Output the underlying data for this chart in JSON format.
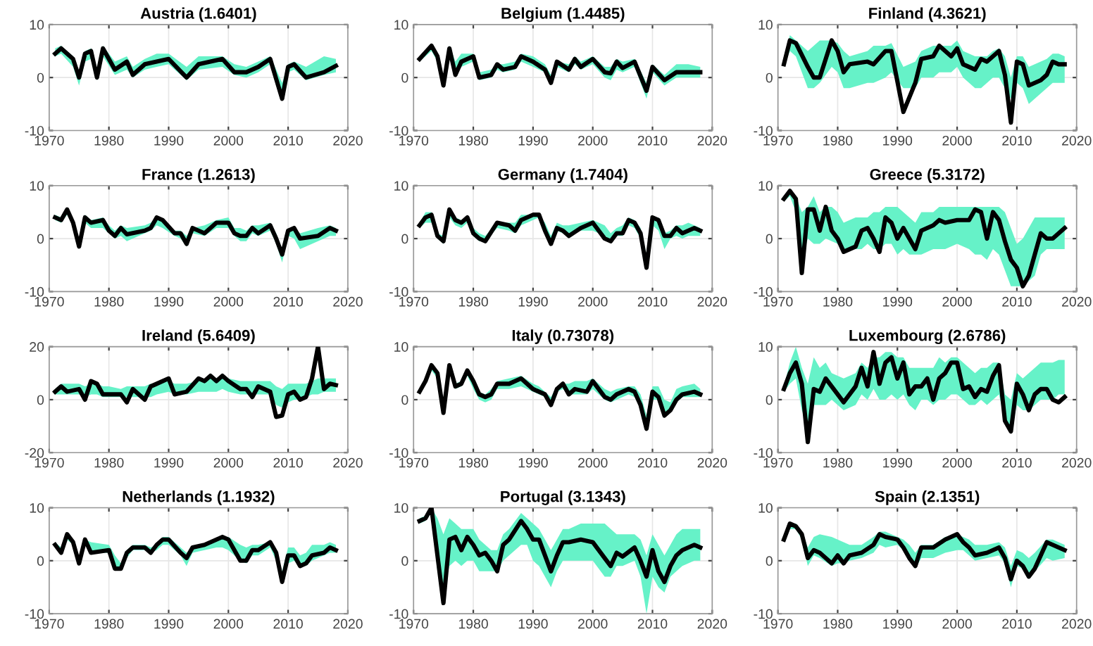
{
  "chart_data": [
    {
      "type": "line",
      "title": "Austria (1.6401)",
      "xlim": [
        1970,
        2020
      ],
      "xticks": [
        1970,
        1980,
        1990,
        2000,
        2010,
        2020
      ],
      "ylim": [
        -10,
        10
      ],
      "yticks": [
        -10,
        0,
        10
      ],
      "grid": true,
      "series": [
        {
          "color": "#000000",
          "x": [
            1971,
            1972,
            1974,
            1975,
            1976,
            1977,
            1978,
            1979,
            1981,
            1983,
            1984,
            1986,
            1988,
            1990,
            1993,
            1995,
            1999,
            2001,
            2003,
            2005,
            2007,
            2009,
            2010,
            2011,
            2013,
            2016,
            2018
          ],
          "values": [
            4.5,
            5.5,
            3.5,
            0,
            4.5,
            5,
            0,
            5.5,
            1.5,
            3,
            0.5,
            2.5,
            3,
            3.5,
            0,
            2.5,
            3.5,
            1,
            1,
            2,
            3.5,
            -4,
            2,
            2.5,
            0,
            1,
            2.2
          ],
          "lower": [
            4,
            4.5,
            2,
            -1.5,
            3,
            3.5,
            -0.5,
            4,
            0.5,
            1.5,
            0,
            1.5,
            2,
            2.5,
            -0.5,
            1.5,
            2,
            0.5,
            0,
            1,
            2.5,
            -3,
            1,
            1.5,
            -0.5,
            0.5,
            1
          ],
          "upper": [
            5.5,
            6,
            4,
            1,
            5,
            5.5,
            1.5,
            6,
            3,
            4,
            2,
            3.5,
            4.5,
            4.5,
            2,
            4,
            4,
            2.5,
            2,
            3,
            4,
            -1,
            2.5,
            3,
            2,
            4,
            3.5
          ]
        }
      ]
    },
    {
      "type": "line",
      "title": "Belgium (1.4485)",
      "xlim": [
        1970,
        2020
      ],
      "xticks": [
        1970,
        1980,
        1990,
        2000,
        2010,
        2020
      ],
      "ylim": [
        -10,
        10
      ],
      "yticks": [
        -10,
        0,
        10
      ],
      "grid": true,
      "series": [
        {
          "color": "#000000",
          "x": [
            1971,
            1973,
            1974,
            1975,
            1976,
            1977,
            1978,
            1980,
            1981,
            1983,
            1984,
            1985,
            1987,
            1988,
            1990,
            1992,
            1993,
            1994,
            1996,
            1997,
            1998,
            2000,
            2002,
            2003,
            2004,
            2005,
            2007,
            2009,
            2010,
            2012,
            2014,
            2016,
            2018
          ],
          "values": [
            3.5,
            6,
            4,
            -1.5,
            5.5,
            0.5,
            3,
            4,
            0,
            0.5,
            2.5,
            1.5,
            2,
            4,
            3,
            1.5,
            -1,
            3,
            1.5,
            3.5,
            2,
            3.5,
            1,
            0.8,
            3,
            1.8,
            3,
            -2.5,
            2,
            -0.5,
            1,
            1,
            1
          ],
          "lower": [
            3,
            5,
            3,
            -1,
            4,
            1.5,
            2,
            3,
            -0.5,
            0,
            1.5,
            1,
            1.5,
            3,
            2,
            1,
            -1,
            2,
            1,
            2.5,
            1.5,
            2.5,
            0,
            -0.5,
            1.5,
            1,
            2,
            -4,
            1,
            -1.5,
            0,
            0,
            0
          ],
          "upper": [
            4,
            6,
            4.5,
            0,
            6,
            3,
            4.5,
            4.5,
            1,
            1.5,
            2.5,
            2.5,
            3,
            4.5,
            4,
            2.5,
            0.5,
            3,
            2.5,
            4,
            3,
            4,
            2,
            2,
            3.5,
            3,
            3.5,
            -1,
            2.5,
            0.5,
            2.5,
            2.5,
            2
          ]
        }
      ]
    },
    {
      "type": "line",
      "title": "Finland (4.3621)",
      "xlim": [
        1970,
        2020
      ],
      "xticks": [
        1970,
        1980,
        1990,
        2000,
        2010,
        2020
      ],
      "ylim": [
        -10,
        10
      ],
      "yticks": [
        -10,
        0,
        10
      ],
      "grid": true,
      "series": [
        {
          "color": "#000000",
          "x": [
            1971,
            1972,
            1973,
            1975,
            1976,
            1977,
            1979,
            1980,
            1981,
            1982,
            1985,
            1986,
            1988,
            1989,
            1991,
            1993,
            1994,
            1996,
            1997,
            1999,
            2000,
            2001,
            2003,
            2004,
            2005,
            2006,
            2007,
            2008,
            2009,
            2010,
            2011,
            2012,
            2014,
            2015,
            2016,
            2017,
            2018
          ],
          "values": [
            2.5,
            7,
            6.5,
            2,
            0,
            0,
            7,
            5,
            1,
            2.5,
            3,
            2.5,
            5,
            5,
            -6.5,
            -1,
            3.5,
            4,
            6,
            4,
            5.5,
            2.5,
            1.5,
            3.5,
            3,
            4,
            5,
            0.5,
            -8.5,
            3,
            2.5,
            -1.5,
            -0.5,
            0.5,
            3,
            2.5,
            2.5
          ],
          "lower": [
            2,
            5,
            4,
            -2,
            -2,
            -1,
            2,
            1,
            -2,
            -2,
            -1,
            -1,
            0,
            1,
            -2,
            -2,
            0,
            0,
            1,
            1,
            2,
            0,
            -2,
            -2,
            -1,
            0,
            0,
            -2,
            -4,
            -1,
            -2,
            -5,
            -3,
            -2,
            -1,
            -1,
            -1
          ],
          "upper": [
            3,
            8,
            7,
            5,
            6,
            7,
            7,
            6.5,
            5,
            4,
            5,
            6,
            6,
            6.5,
            2,
            3,
            5,
            6,
            6,
            6,
            7,
            5,
            4,
            4,
            4,
            5,
            5.5,
            4,
            0,
            4,
            4,
            2,
            3,
            3.5,
            4.5,
            4.5,
            4
          ]
        }
      ]
    },
    {
      "type": "line",
      "title": "France (1.2613)",
      "xlim": [
        1970,
        2020
      ],
      "xticks": [
        1970,
        1980,
        1990,
        2000,
        2010,
        2020
      ],
      "ylim": [
        -10,
        10
      ],
      "yticks": [
        -10,
        0,
        10
      ],
      "grid": true,
      "series": [
        {
          "color": "#000000",
          "x": [
            1971,
            1972,
            1973,
            1974,
            1975,
            1976,
            1977,
            1979,
            1980,
            1981,
            1982,
            1983,
            1986,
            1987,
            1988,
            1989,
            1991,
            1992,
            1993,
            1994,
            1996,
            1998,
            2000,
            2001,
            2002,
            2003,
            2004,
            2005,
            2007,
            2008,
            2009,
            2010,
            2011,
            2012,
            2015,
            2017,
            2018
          ],
          "values": [
            4,
            3.5,
            5.5,
            3,
            -1.5,
            4,
            3,
            3.5,
            1.5,
            0.5,
            2,
            0.8,
            1.5,
            2,
            4,
            3.5,
            1,
            1,
            -1,
            2,
            1,
            3,
            3,
            1,
            0.5,
            0.5,
            2,
            1,
            2.5,
            0,
            -3,
            1.5,
            2,
            0,
            0.5,
            2,
            1.5
          ],
          "lower": [
            3.5,
            3,
            4.5,
            2.5,
            -1,
            3,
            2,
            2,
            1,
            0,
            0.5,
            -0.5,
            1,
            1.5,
            2.5,
            2,
            0.5,
            0,
            -1.5,
            1,
            0.5,
            2,
            2,
            0.5,
            -0.5,
            -0.5,
            1,
            0.5,
            1.5,
            -1,
            -4.5,
            0.5,
            0,
            -2,
            -0.5,
            0.5,
            0.5
          ],
          "upper": [
            4.5,
            4,
            5.5,
            3.5,
            0,
            4.5,
            3.5,
            4,
            2.5,
            1.5,
            2.5,
            2,
            2.5,
            3,
            4,
            3.5,
            1.5,
            1.5,
            0.5,
            2,
            2.5,
            3.5,
            4,
            2,
            2,
            1.5,
            2.5,
            2.5,
            3,
            1,
            -2,
            1.5,
            2,
            1,
            2,
            2.5,
            2
          ]
        }
      ]
    },
    {
      "type": "line",
      "title": "Germany (1.7404)",
      "xlim": [
        1970,
        2020
      ],
      "xticks": [
        1970,
        1980,
        1990,
        2000,
        2010,
        2020
      ],
      "ylim": [
        -10,
        10
      ],
      "yticks": [
        -10,
        0,
        10
      ],
      "grid": true,
      "series": [
        {
          "color": "#000000",
          "x": [
            1971,
            1972,
            1973,
            1974,
            1975,
            1976,
            1977,
            1978,
            1979,
            1980,
            1981,
            1982,
            1984,
            1986,
            1987,
            1988,
            1990,
            1991,
            1992,
            1993,
            1994,
            1995,
            1996,
            1998,
            2000,
            2001,
            2002,
            2003,
            2004,
            2005,
            2006,
            2007,
            2008,
            2009,
            2010,
            2011,
            2012,
            2013,
            2014,
            2015,
            2016,
            2017,
            2018
          ],
          "values": [
            2.5,
            4,
            4.5,
            0.5,
            -0.5,
            5.5,
            3.5,
            3,
            4,
            1,
            0,
            -0.5,
            3,
            2.5,
            1.5,
            3.5,
            4.5,
            4.5,
            1.5,
            -1,
            2,
            1.5,
            0.5,
            2,
            3,
            1.5,
            0,
            -0.5,
            1,
            1,
            3.5,
            3,
            1,
            -5.5,
            4,
            3.5,
            0.5,
            0.5,
            2,
            1,
            1.5,
            2,
            1.5
          ],
          "lower": [
            2,
            3,
            3,
            0,
            -1,
            4,
            2.5,
            2,
            3,
            0.5,
            -0.5,
            -0.5,
            2,
            1.5,
            1,
            2.5,
            3.5,
            4,
            1,
            -1,
            1.5,
            1,
            1,
            1.5,
            1.5,
            1,
            0,
            -0.5,
            0.5,
            0.5,
            2.5,
            2,
            0,
            -4,
            2.5,
            1.5,
            -2,
            0,
            0.5,
            0,
            0.5,
            0.5,
            0.5
          ],
          "upper": [
            3,
            5,
            5,
            1,
            0.5,
            5.5,
            4,
            3.5,
            4,
            2,
            1,
            0.5,
            3,
            3,
            3,
            4.5,
            4.5,
            4.5,
            3,
            0.5,
            3,
            2.5,
            2.5,
            3,
            3.5,
            3,
            2.5,
            1,
            2,
            2.5,
            4,
            3.5,
            2,
            -3,
            4,
            4,
            1,
            1.5,
            2.5,
            2.5,
            3,
            2.5,
            2
          ]
        }
      ]
    },
    {
      "type": "line",
      "title": "Greece (5.3172)",
      "xlim": [
        1970,
        2020
      ],
      "xticks": [
        1970,
        1980,
        1990,
        2000,
        2010,
        2020
      ],
      "ylim": [
        -10,
        10
      ],
      "yticks": [
        -10,
        0,
        10
      ],
      "grid": true,
      "series": [
        {
          "color": "#000000",
          "x": [
            1971,
            1972,
            1973,
            1974,
            1975,
            1976,
            1977,
            1978,
            1979,
            1980,
            1981,
            1983,
            1984,
            1985,
            1986,
            1987,
            1988,
            1989,
            1990,
            1991,
            1992,
            1993,
            1994,
            1996,
            1997,
            1998,
            2000,
            2002,
            2003,
            2004,
            2005,
            2006,
            2007,
            2008,
            2009,
            2010,
            2011,
            2012,
            2013,
            2014,
            2015,
            2016,
            2018
          ],
          "values": [
            7.5,
            9,
            7.5,
            -6.5,
            5.5,
            5.5,
            1.5,
            6,
            1.5,
            0,
            -2.5,
            -1.5,
            1.5,
            2,
            0,
            -2.5,
            4,
            3,
            0,
            2,
            0,
            -2,
            1.5,
            2.5,
            3.5,
            3,
            3.5,
            3.5,
            5.5,
            5,
            0,
            5,
            3.5,
            -0.5,
            -4,
            -5.5,
            -9,
            -7,
            -3,
            1,
            0,
            0,
            2
          ],
          "lower": [
            7,
            8,
            5,
            -4,
            0,
            -1,
            -1,
            0,
            -0.5,
            -1,
            -2,
            -2,
            -2,
            -1,
            -2,
            -2,
            -1,
            -1,
            -3,
            -2,
            -3,
            -3,
            -3,
            -2,
            -2,
            -2,
            -1,
            -2,
            -3,
            -3,
            -4,
            -2,
            -3,
            -6,
            -9,
            -9,
            -9,
            -8,
            -7,
            -3,
            -2,
            -2,
            -2
          ],
          "upper": [
            8,
            9,
            8,
            5,
            6,
            8,
            5,
            6,
            6,
            5,
            3,
            4,
            4,
            4,
            5,
            5,
            6,
            6,
            6,
            5,
            4,
            3,
            5,
            5,
            6,
            6,
            6,
            6,
            6,
            6,
            6,
            6,
            6,
            5,
            2,
            -1,
            0,
            2,
            4,
            4,
            4,
            4,
            4
          ]
        }
      ]
    },
    {
      "type": "line",
      "title": "Ireland (5.6409)",
      "xlim": [
        1970,
        2020
      ],
      "xticks": [
        1970,
        1980,
        1990,
        2000,
        2010,
        2020
      ],
      "ylim": [
        -20,
        20
      ],
      "yticks": [
        -20,
        0,
        20
      ],
      "grid": true,
      "series": [
        {
          "color": "#000000",
          "x": [
            1971,
            1972,
            1973,
            1975,
            1976,
            1977,
            1978,
            1979,
            1980,
            1982,
            1983,
            1984,
            1986,
            1987,
            1988,
            1990,
            1991,
            1993,
            1995,
            1996,
            1997,
            1998,
            1999,
            2000,
            2002,
            2003,
            2004,
            2005,
            2007,
            2008,
            2009,
            2010,
            2011,
            2012,
            2013,
            2014,
            2015,
            2016,
            2017,
            2018
          ],
          "values": [
            3,
            5,
            3,
            4,
            0,
            7,
            6,
            2,
            2,
            2,
            -1,
            4,
            0,
            5,
            6,
            8,
            2,
            3,
            8,
            7,
            9,
            7,
            9,
            7,
            4,
            4,
            1,
            5,
            3,
            -6.5,
            -6,
            2,
            3,
            0,
            1,
            8,
            20,
            4,
            6,
            5.5
          ],
          "lower": [
            2,
            2,
            2,
            2,
            1,
            2,
            2,
            1,
            1,
            1,
            1,
            1,
            1,
            1,
            2,
            3,
            2,
            2,
            3,
            3,
            3,
            3,
            4,
            3,
            2,
            2,
            2,
            2,
            2,
            -2,
            -3,
            -1,
            0,
            0,
            1,
            2,
            2,
            3,
            3,
            3
          ],
          "upper": [
            4,
            6,
            6,
            6,
            5,
            6,
            6,
            5,
            5,
            4,
            5,
            5,
            5,
            6,
            6,
            7,
            6,
            6,
            7,
            8,
            8,
            8,
            8,
            8,
            7,
            7,
            7,
            7,
            7,
            5,
            4,
            6,
            6,
            6,
            6,
            7,
            8,
            8,
            8,
            8
          ]
        }
      ]
    },
    {
      "type": "line",
      "title": "Italy (0.73078)",
      "xlim": [
        1970,
        2020
      ],
      "xticks": [
        1970,
        1980,
        1990,
        2000,
        2010,
        2020
      ],
      "ylim": [
        -10,
        10
      ],
      "yticks": [
        -10,
        0,
        10
      ],
      "grid": true,
      "series": [
        {
          "color": "#000000",
          "x": [
            1971,
            1972,
            1973,
            1974,
            1975,
            1976,
            1977,
            1978,
            1979,
            1980,
            1981,
            1982,
            1983,
            1984,
            1986,
            1988,
            1990,
            1991,
            1992,
            1993,
            1994,
            1995,
            1996,
            1997,
            1999,
            2000,
            2001,
            2002,
            2003,
            2004,
            2006,
            2007,
            2008,
            2009,
            2010,
            2011,
            2012,
            2013,
            2014,
            2015,
            2017,
            2018
          ],
          "values": [
            1.5,
            3.5,
            6.5,
            5,
            -2.5,
            6.5,
            2.5,
            3,
            5.5,
            3.5,
            1,
            0.5,
            1,
            3,
            3,
            4,
            2,
            1.5,
            1,
            -1,
            2,
            3,
            1,
            2,
            1.5,
            3.5,
            2,
            0.5,
            0,
            1,
            2,
            1.5,
            -1,
            -5.5,
            1.5,
            0.5,
            -3,
            -2,
            0,
            1,
            1.5,
            1
          ],
          "lower": [
            1,
            3,
            5.5,
            4,
            -2,
            5,
            2,
            2.5,
            4.5,
            2,
            0,
            -0.5,
            0,
            2,
            2,
            2.5,
            1.5,
            1,
            0.5,
            -1,
            1.5,
            2,
            1,
            1,
            1,
            2,
            1,
            0,
            -0.5,
            0,
            1,
            0.5,
            -1.5,
            -5,
            0,
            0,
            -3,
            -2,
            -0.5,
            0.5,
            0.5,
            0.5
          ],
          "upper": [
            2,
            4,
            6.5,
            5,
            -1,
            6.5,
            3,
            3.5,
            5.5,
            3.5,
            1.5,
            1,
            2,
            3.5,
            4,
            4.5,
            3,
            2.5,
            1.5,
            0.5,
            2.5,
            3,
            3,
            3.5,
            3.5,
            4,
            3,
            2,
            1.5,
            2,
            2.5,
            2.5,
            1,
            -3,
            2.5,
            2.5,
            0,
            -0.5,
            2,
            2.5,
            3,
            2
          ]
        }
      ]
    },
    {
      "type": "line",
      "title": "Luxembourg (2.6786)",
      "xlim": [
        1970,
        2020
      ],
      "xticks": [
        1970,
        1980,
        1990,
        2000,
        2010,
        2020
      ],
      "ylim": [
        -10,
        10
      ],
      "yticks": [
        -10,
        0,
        10
      ],
      "grid": true,
      "series": [
        {
          "color": "#000000",
          "x": [
            1971,
            1972,
            1973,
            1974,
            1975,
            1976,
            1977,
            1978,
            1979,
            1981,
            1983,
            1984,
            1985,
            1986,
            1987,
            1988,
            1989,
            1990,
            1991,
            1992,
            1993,
            1994,
            1995,
            1996,
            1997,
            1998,
            1999,
            2000,
            2001,
            2002,
            2003,
            2004,
            2005,
            2006,
            2007,
            2008,
            2009,
            2010,
            2011,
            2012,
            2013,
            2014,
            2015,
            2016,
            2017,
            2018
          ],
          "values": [
            2,
            5,
            7,
            3,
            -8,
            2,
            1.5,
            4,
            2.5,
            -0.5,
            2.5,
            6,
            2.5,
            9,
            3,
            7,
            8,
            4,
            7,
            1,
            2.5,
            2.5,
            4,
            0,
            4,
            5,
            7,
            7,
            2,
            2.5,
            0.5,
            2,
            1.5,
            4.5,
            6.5,
            -4,
            -6,
            3,
            1,
            -2,
            1,
            2,
            2,
            0,
            -0.5,
            0.5
          ],
          "lower": [
            1.5,
            3,
            4,
            -2,
            -5,
            -1,
            -1,
            -1,
            0,
            -2,
            -1,
            1,
            0,
            2,
            0,
            0,
            1,
            0,
            1,
            -1,
            -2,
            0,
            0,
            -1,
            0,
            0,
            1,
            1,
            0,
            -1,
            -1,
            0,
            -1,
            0,
            1,
            -4,
            -6,
            -1,
            -2,
            -2,
            -1,
            0,
            0,
            0,
            1,
            1
          ],
          "upper": [
            2.5,
            7,
            10,
            6,
            3,
            8,
            6,
            7,
            5,
            4,
            5,
            7,
            6,
            8,
            8,
            9,
            9,
            8,
            8,
            6,
            6,
            6,
            6,
            6,
            8,
            7,
            8,
            8,
            7,
            6,
            5,
            6,
            6,
            7,
            7,
            1,
            0,
            5,
            4,
            5,
            6,
            7,
            7,
            7,
            7.5,
            7.5
          ]
        }
      ]
    },
    {
      "type": "line",
      "title": "Netherlands (1.1932)",
      "xlim": [
        1970,
        2020
      ],
      "xticks": [
        1970,
        1980,
        1990,
        2000,
        2010,
        2020
      ],
      "ylim": [
        -10,
        10
      ],
      "yticks": [
        -10,
        0,
        10
      ],
      "grid": true,
      "series": [
        {
          "color": "#000000",
          "x": [
            1971,
            1972,
            1973,
            1974,
            1975,
            1976,
            1977,
            1980,
            1981,
            1982,
            1983,
            1984,
            1986,
            1987,
            1988,
            1989,
            1990,
            1992,
            1993,
            1994,
            1996,
            1998,
            1999,
            2000,
            2002,
            2003,
            2004,
            2005,
            2007,
            2008,
            2009,
            2010,
            2011,
            2012,
            2013,
            2014,
            2016,
            2017,
            2018
          ],
          "values": [
            3,
            1.5,
            5,
            3.5,
            -0.5,
            4,
            1.5,
            2,
            -1.5,
            -1.5,
            1.5,
            2.5,
            2.5,
            1.5,
            3,
            4,
            4,
            1.5,
            0.5,
            2.5,
            3,
            4,
            4.5,
            4,
            0,
            0,
            2,
            2,
            3.5,
            1.5,
            -4,
            1,
            1,
            -1,
            -0.5,
            1,
            1.5,
            2.5,
            2
          ],
          "lower": [
            2.5,
            1.5,
            4,
            3,
            -0.5,
            3,
            1.5,
            1.5,
            -1,
            -1.5,
            0.5,
            2,
            2,
            1.5,
            2,
            3,
            3,
            1,
            -1,
            1.5,
            2,
            2.5,
            2.5,
            2,
            0,
            -0.5,
            1,
            1,
            2.5,
            0,
            -3.5,
            -0.5,
            0,
            -1,
            -1,
            0,
            1,
            1.5,
            1.5
          ],
          "upper": [
            3.5,
            2.5,
            5,
            4,
            0.5,
            4,
            3.5,
            3,
            1,
            -0.5,
            2,
            3,
            3,
            2.5,
            3,
            4.5,
            4.5,
            2.5,
            1.5,
            2.5,
            3,
            4,
            4.5,
            4.5,
            3,
            2.5,
            3,
            3,
            3.5,
            2,
            -2,
            2.5,
            2.5,
            1,
            1.5,
            3,
            3,
            3.5,
            3
          ]
        }
      ]
    },
    {
      "type": "line",
      "title": "Portugal (3.1343)",
      "xlim": [
        1970,
        2020
      ],
      "xticks": [
        1970,
        1980,
        1990,
        2000,
        2010,
        2020
      ],
      "ylim": [
        -10,
        10
      ],
      "yticks": [
        -10,
        0,
        10
      ],
      "grid": true,
      "series": [
        {
          "color": "#000000",
          "x": [
            1971,
            1972,
            1973,
            1974,
            1975,
            1976,
            1977,
            1978,
            1979,
            1980,
            1981,
            1982,
            1983,
            1984,
            1985,
            1986,
            1988,
            1989,
            1990,
            1991,
            1993,
            1994,
            1995,
            1996,
            1998,
            2000,
            2002,
            2003,
            2004,
            2005,
            2007,
            2008,
            2009,
            2010,
            2011,
            2012,
            2013,
            2014,
            2015,
            2017,
            2018
          ],
          "values": [
            7.5,
            8,
            10,
            1,
            -8,
            4,
            4.5,
            2,
            4.5,
            3,
            1,
            1.5,
            0,
            -2,
            3,
            4,
            7.5,
            6,
            4,
            4,
            -2,
            1,
            3.5,
            3.5,
            4,
            3.5,
            0.5,
            -1,
            1.5,
            0.8,
            2.5,
            0,
            -3,
            2,
            -2,
            -4,
            -1,
            1,
            2,
            3,
            2.5
          ],
          "lower": [
            7,
            7.5,
            9,
            -2,
            -6,
            -1,
            0,
            -1,
            0,
            0,
            -2,
            -2,
            -2,
            -2,
            0,
            1,
            3,
            3,
            0,
            -1,
            -5,
            -2,
            0,
            0,
            0,
            0,
            -3,
            -3,
            -1,
            -1,
            0,
            -3,
            -10,
            -3,
            -5,
            -6,
            -3,
            -2,
            -1,
            0,
            0
          ],
          "upper": [
            8,
            8.5,
            10,
            8,
            5,
            8,
            7,
            6,
            6,
            6,
            4,
            3,
            2,
            2,
            5,
            6,
            9,
            8,
            7,
            6,
            2,
            4,
            6,
            6,
            7,
            7,
            7,
            6,
            5,
            5,
            5,
            4,
            1,
            5,
            3,
            1,
            3,
            5,
            6,
            6,
            6
          ]
        }
      ]
    },
    {
      "type": "line",
      "title": "Spain (2.1351)",
      "xlim": [
        1970,
        2020
      ],
      "xticks": [
        1970,
        1980,
        1990,
        2000,
        2010,
        2020
      ],
      "ylim": [
        -10,
        10
      ],
      "yticks": [
        -10,
        0,
        10
      ],
      "grid": true,
      "series": [
        {
          "color": "#000000",
          "x": [
            1971,
            1972,
            1973,
            1974,
            1975,
            1976,
            1977,
            1979,
            1980,
            1981,
            1982,
            1984,
            1986,
            1987,
            1988,
            1990,
            1991,
            1992,
            1993,
            1994,
            1996,
            1998,
            2000,
            2001,
            2002,
            2003,
            2005,
            2007,
            2008,
            2009,
            2010,
            2011,
            2012,
            2013,
            2015,
            2016,
            2018
          ],
          "values": [
            4,
            7,
            6.5,
            5,
            0.5,
            2,
            1.5,
            -0.5,
            1,
            -0.5,
            1,
            1.5,
            3,
            5,
            4.5,
            4,
            2.5,
            0.5,
            -1,
            2.5,
            2.5,
            4,
            5,
            3.5,
            2.5,
            1,
            1.5,
            2.5,
            0.5,
            -3.5,
            0,
            -1,
            -3,
            -1.5,
            3.5,
            3,
            2
          ],
          "lower": [
            3.5,
            6,
            6,
            4,
            -1,
            1,
            0.5,
            -1,
            -0.5,
            -0.5,
            0,
            0.5,
            1.5,
            3,
            2.5,
            3,
            2,
            0,
            -1.5,
            0.5,
            0.5,
            1.5,
            2,
            2,
            1,
            0,
            0.5,
            1,
            -0.5,
            -5,
            -1,
            -1.5,
            -3,
            -2,
            0.5,
            0,
            0.5
          ],
          "upper": [
            4.5,
            7,
            7,
            5.5,
            2.5,
            4.5,
            5,
            4.5,
            4,
            3.5,
            3,
            3,
            4.5,
            5.5,
            5.5,
            4.5,
            4,
            3,
            1.5,
            3,
            3,
            4.5,
            5,
            4.5,
            4,
            3,
            3,
            3.5,
            2.5,
            -1,
            2,
            1.5,
            0.5,
            1.5,
            4,
            4,
            3
          ]
        }
      ]
    }
  ]
}
